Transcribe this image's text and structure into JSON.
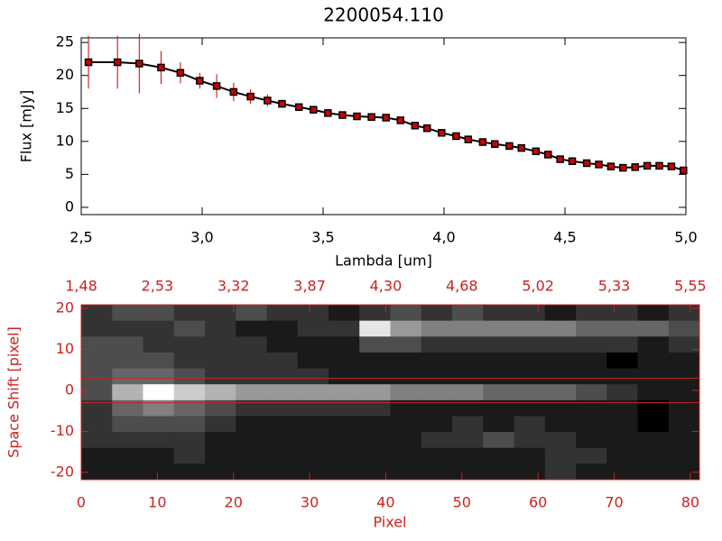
{
  "chart_data": [
    {
      "type": "errorline",
      "title": "2200054.110",
      "xlabel": "Lambda [um]",
      "ylabel": "Flux [mJy]",
      "x": [
        2.53,
        2.65,
        2.74,
        2.83,
        2.91,
        2.99,
        3.06,
        3.13,
        3.2,
        3.27,
        3.33,
        3.4,
        3.46,
        3.52,
        3.58,
        3.64,
        3.7,
        3.76,
        3.82,
        3.88,
        3.93,
        3.99,
        4.05,
        4.1,
        4.16,
        4.21,
        4.27,
        4.32,
        4.38,
        4.43,
        4.48,
        4.53,
        4.59,
        4.64,
        4.69,
        4.74,
        4.79,
        4.84,
        4.89,
        4.94,
        4.99
      ],
      "values": [
        22,
        22,
        21.8,
        21.2,
        20.4,
        19.2,
        18.4,
        17.5,
        16.8,
        16.2,
        15.7,
        15.2,
        14.8,
        14.3,
        14.0,
        13.8,
        13.7,
        13.6,
        13.2,
        12.4,
        12.0,
        11.3,
        10.8,
        10.3,
        9.9,
        9.6,
        9.3,
        9.0,
        8.5,
        8.0,
        7.3,
        7.0,
        6.7,
        6.5,
        6.2,
        6.0,
        6.1,
        6.3,
        6.3,
        6.2,
        5.6
      ],
      "errors": [
        4,
        4,
        4.5,
        2.5,
        1.6,
        1.2,
        1.8,
        1.4,
        1.1,
        0.9,
        0.6,
        0.5,
        0.3,
        0.3,
        0.3,
        0.3,
        0.3,
        0.3,
        0.3,
        0.3,
        0.3,
        0.3,
        0.3,
        0.3,
        0.3,
        0.3,
        0.3,
        0.3,
        0.3,
        0.3,
        0.3,
        0.3,
        0.3,
        0.3,
        0.3,
        0.3,
        0.3,
        0.3,
        0.3,
        0.3,
        0.3
      ],
      "line_color": "#000000",
      "marker_color": "#cc0000",
      "error_color": "#cc0000",
      "xlim": [
        2.5,
        5.0
      ],
      "ylim": [
        -1.1,
        25.7
      ],
      "xticks": [
        {
          "value": 2.5,
          "label": "2,5"
        },
        {
          "value": 3.0,
          "label": "3,0"
        },
        {
          "value": 3.5,
          "label": "3,5"
        },
        {
          "value": 4.0,
          "label": "4,0"
        },
        {
          "value": 4.5,
          "label": "4,5"
        },
        {
          "value": 5.0,
          "label": "5,0"
        }
      ],
      "yticks": [
        0,
        5,
        10,
        15,
        20,
        25
      ]
    },
    {
      "type": "heatmap",
      "xlabel": "Pixel",
      "ylabel": "Space Shift [pixel]",
      "axis_color": "#cc2222",
      "xlim": [
        0,
        81.2
      ],
      "ylim": [
        -21.8,
        20.9
      ],
      "xticks": [
        0,
        10,
        20,
        30,
        40,
        50,
        60,
        70,
        80
      ],
      "x2ticks": [
        {
          "value": 0,
          "label": "1,48"
        },
        {
          "value": 10,
          "label": "2,53"
        },
        {
          "value": 20,
          "label": "3,32"
        },
        {
          "value": 30,
          "label": "3,87"
        },
        {
          "value": 40,
          "label": "4,30"
        },
        {
          "value": 50,
          "label": "4,68"
        },
        {
          "value": 60,
          "label": "5,02"
        },
        {
          "value": 70,
          "label": "5,33"
        },
        {
          "value": 80,
          "label": "5,55"
        }
      ],
      "yticks": [
        -20,
        -10,
        0,
        10,
        20
      ],
      "hlines": [
        3,
        -3
      ],
      "z": [
        [
          2,
          3,
          3,
          2,
          2,
          3,
          2,
          2,
          1,
          2,
          3,
          2,
          3,
          2,
          2,
          1,
          2,
          2,
          1,
          2
        ],
        [
          2,
          2,
          2,
          3,
          2,
          1,
          1,
          2,
          2,
          9,
          6,
          5,
          5,
          5,
          5,
          5,
          4,
          4,
          4,
          3
        ],
        [
          3,
          3,
          2,
          2,
          2,
          2,
          1,
          1,
          1,
          3,
          3,
          2,
          2,
          2,
          2,
          2,
          2,
          2,
          1,
          2
        ],
        [
          3,
          3,
          3,
          2,
          2,
          2,
          2,
          1,
          1,
          1,
          1,
          1,
          1,
          1,
          1,
          1,
          1,
          0,
          1,
          1
        ],
        [
          3,
          4,
          4,
          3,
          2,
          2,
          2,
          2,
          1,
          1,
          1,
          1,
          1,
          1,
          1,
          1,
          1,
          1,
          1,
          1
        ],
        [
          3,
          7,
          10,
          8,
          7,
          6,
          6,
          6,
          6,
          6,
          5,
          5,
          5,
          4,
          4,
          4,
          3,
          2,
          1,
          1
        ],
        [
          2,
          4,
          5,
          4,
          3,
          2,
          2,
          2,
          2,
          2,
          1,
          1,
          1,
          1,
          1,
          1,
          1,
          1,
          0,
          1
        ],
        [
          2,
          3,
          3,
          3,
          2,
          1,
          1,
          1,
          1,
          1,
          1,
          1,
          2,
          1,
          2,
          1,
          1,
          1,
          0,
          1
        ],
        [
          2,
          2,
          2,
          2,
          1,
          1,
          1,
          1,
          1,
          1,
          1,
          2,
          2,
          3,
          2,
          2,
          1,
          1,
          1,
          1
        ],
        [
          1,
          1,
          1,
          2,
          1,
          1,
          1,
          1,
          1,
          1,
          1,
          1,
          1,
          1,
          1,
          2,
          2,
          1,
          1,
          1
        ],
        [
          1,
          1,
          1,
          1,
          1,
          1,
          1,
          1,
          1,
          1,
          1,
          1,
          1,
          1,
          1,
          2,
          1,
          1,
          1,
          1
        ]
      ]
    }
  ]
}
